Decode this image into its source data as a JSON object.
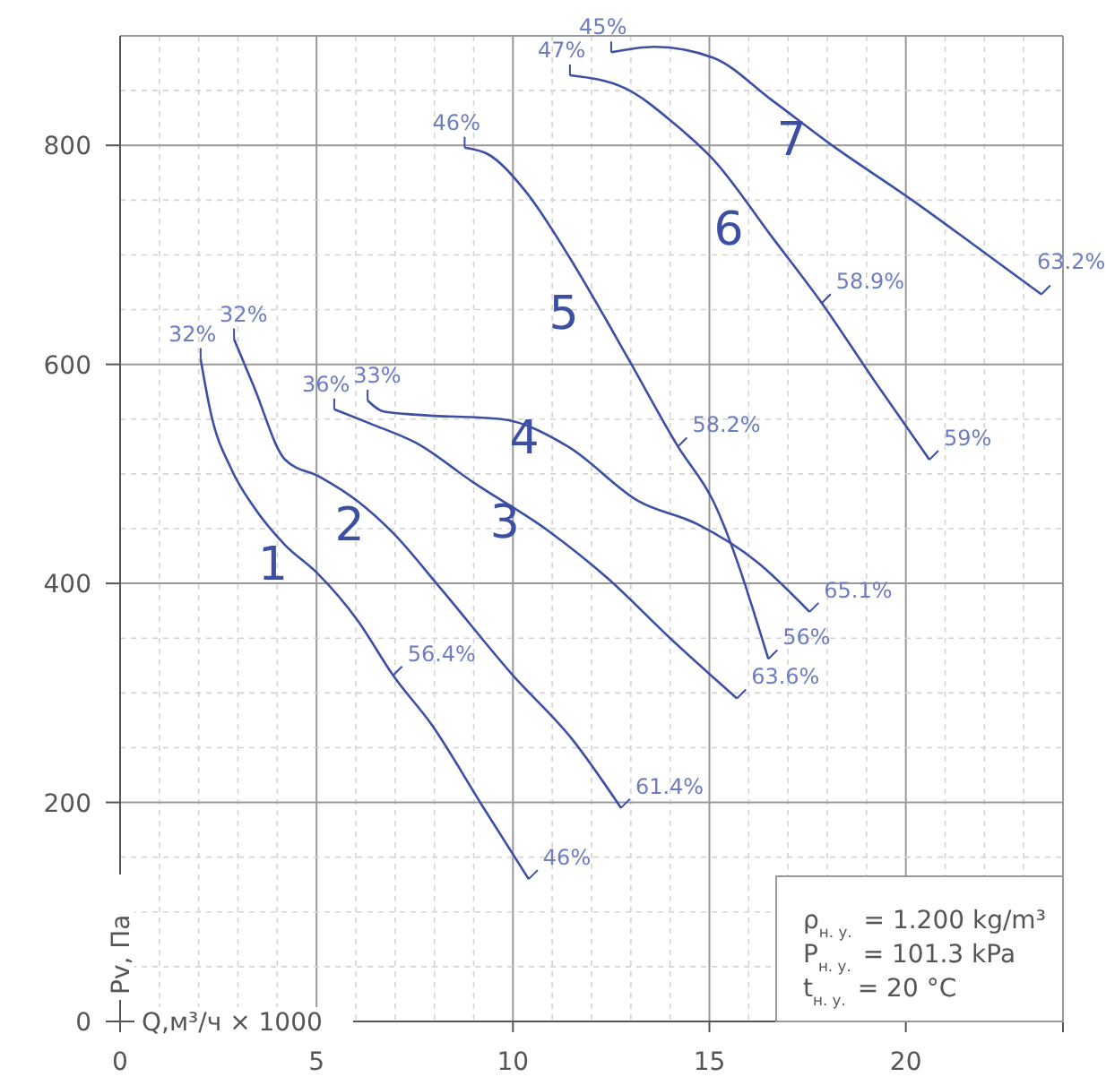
{
  "chart_data": {
    "type": "line",
    "xlabel": "Q,м³/ч × 1000",
    "ylabel": "Pv, Па",
    "xlim": [
      0,
      24
    ],
    "ylim": [
      0,
      900
    ],
    "xticks": [
      0,
      5,
      10,
      15,
      20
    ],
    "yticks": [
      0,
      200,
      400,
      600,
      800
    ],
    "grid": true,
    "marker": "none",
    "line_style": "solid",
    "series": [
      {
        "name": "1",
        "color": "#3d4fa3",
        "x": [
          2.05,
          2.3,
          2.85,
          3.4,
          4.2,
          5.0,
          6.05,
          6.95,
          7.95,
          9.2,
          10.4
        ],
        "values": [
          605,
          557,
          503,
          470,
          435,
          410,
          366,
          316,
          270,
          198,
          130
        ]
      },
      {
        "name": "2",
        "color": "#3d4fa3",
        "x": [
          2.9,
          3.4,
          4.2,
          5.1,
          6.05,
          6.95,
          8.1,
          10.0,
          11.5,
          12.75
        ],
        "values": [
          623,
          580,
          513,
          497,
          475,
          446,
          398,
          316,
          258,
          195
        ]
      },
      {
        "name": "3",
        "color": "#3d4fa3",
        "x": [
          5.45,
          6.36,
          7.55,
          9.0,
          10.9,
          12.4,
          14.0,
          15.7
        ],
        "values": [
          559,
          546,
          528,
          492,
          448,
          405,
          350,
          295
        ]
      },
      {
        "name": "4",
        "color": "#3d4fa3",
        "x": [
          6.3,
          6.7,
          7.55,
          9.7,
          11.4,
          13.2,
          14.7,
          16.2,
          17.55
        ],
        "values": [
          567,
          557,
          554,
          550,
          525,
          475,
          454,
          420,
          374
        ]
      },
      {
        "name": "5",
        "color": "#3d4fa3",
        "x": [
          8.77,
          9.36,
          10.3,
          11.4,
          12.4,
          13.0,
          14.2,
          15.1,
          16.5
        ],
        "values": [
          798,
          792,
          759,
          700,
          639,
          601,
          525,
          475,
          331
        ]
      },
      {
        "name": "6",
        "color": "#3d4fa3",
        "x": [
          11.45,
          12.86,
          14.1,
          15.1,
          16.6,
          17.86,
          19.2,
          20.6
        ],
        "values": [
          864,
          852,
          820,
          787,
          716,
          656,
          585,
          513
        ]
      },
      {
        "name": "7",
        "color": "#3d4fa3",
        "x": [
          12.5,
          13.6,
          15.1,
          16.6,
          18.2,
          20.0,
          21.7,
          23.45
        ],
        "values": [
          885,
          890,
          880,
          841,
          798,
          754,
          710,
          664
        ]
      }
    ],
    "annotations": [
      {
        "text": "32%",
        "x": 2.05,
        "y": 605
      },
      {
        "text": "56.4%",
        "x": 6.95,
        "y": 316
      },
      {
        "text": "46%",
        "x": 10.4,
        "y": 130
      },
      {
        "text": "32%",
        "x": 2.9,
        "y": 623
      },
      {
        "text": "61.4%",
        "x": 12.75,
        "y": 195
      },
      {
        "text": "36%",
        "x": 5.45,
        "y": 559
      },
      {
        "text": "63.6%",
        "x": 15.7,
        "y": 295
      },
      {
        "text": "33%",
        "x": 6.3,
        "y": 567
      },
      {
        "text": "65.1%",
        "x": 17.55,
        "y": 374
      },
      {
        "text": "46%",
        "x": 8.77,
        "y": 798
      },
      {
        "text": "58.2%",
        "x": 14.2,
        "y": 525
      },
      {
        "text": "56%",
        "x": 16.5,
        "y": 331
      },
      {
        "text": "47%",
        "x": 11.45,
        "y": 864
      },
      {
        "text": "58.9%",
        "x": 17.86,
        "y": 656
      },
      {
        "text": "59%",
        "x": 20.6,
        "y": 513
      },
      {
        "text": "45%",
        "x": 12.5,
        "y": 885
      },
      {
        "text": "63.2%",
        "x": 23.45,
        "y": 664
      },
      "ρ$_{н. у.}$ = 1.200 kg/m³",
      "P$_{н. у.}$ = 101.3 kPa",
      "t$_{н. у.}$ = 20 °C"
    ]
  }
}
